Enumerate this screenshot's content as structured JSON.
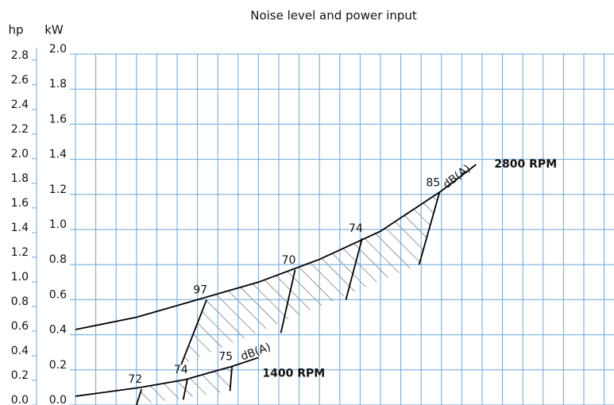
{
  "chart_data": {
    "type": "line",
    "title": "Noise level and power input",
    "y_label": "kW",
    "y2_label": "hp",
    "xlim": [
      0,
      26.5
    ],
    "xticks": [
      0,
      1,
      2,
      3,
      4,
      5,
      6,
      7,
      8,
      9,
      10,
      11,
      12,
      13,
      14,
      15,
      16,
      17,
      18,
      19,
      20,
      21,
      22,
      23,
      24,
      25,
      26
    ],
    "ylim": [
      0,
      2.0
    ],
    "yticks": [
      {
        "value": 0,
        "label": "0.0"
      },
      0.2,
      0.4,
      0.6,
      0.8,
      {
        "value": 1,
        "label": "1.0"
      },
      1.2,
      1.4,
      1.6,
      1.8,
      {
        "value": 2,
        "label": "2.0"
      }
    ],
    "y2lim": [
      0,
      2.85
    ],
    "y2ticks": [
      {
        "value": 0,
        "label": "0.0"
      },
      0.2,
      0.4,
      0.6,
      0.8,
      {
        "value": 1,
        "label": "1.0"
      },
      1.2,
      1.4,
      1.6,
      1.8,
      {
        "value": 2,
        "label": "2.0"
      },
      2.2,
      2.4,
      2.6,
      2.8
    ],
    "grid": true,
    "grid_color": "#6aa6da",
    "series": [
      {
        "name": "2800 RPM",
        "color": "#000000",
        "x": [
          0,
          3,
          6,
          9,
          12,
          15,
          18,
          19.7
        ],
        "values": [
          0.43,
          0.5,
          0.6,
          0.7,
          0.83,
          0.99,
          1.22,
          1.37
        ]
      },
      {
        "name": "1400 RPM",
        "color": "#000000",
        "x": [
          0,
          3.2,
          5.4,
          7.7,
          9.0
        ],
        "values": [
          0.05,
          0.1,
          0.145,
          0.22,
          0.27
        ]
      }
    ],
    "noise_lines": [
      {
        "label": "97",
        "x": [
          6.45,
          5.2
        ],
        "values": [
          0.6,
          0.23
        ]
      },
      {
        "label": "70",
        "x": [
          10.8,
          10.1
        ],
        "values": [
          0.77,
          0.41
        ]
      },
      {
        "label": "74",
        "x": [
          14.1,
          13.3
        ],
        "values": [
          0.95,
          0.6
        ]
      },
      {
        "label": "85",
        "x": [
          17.9,
          16.9
        ],
        "values": [
          1.21,
          0.8
        ]
      },
      {
        "label": "72",
        "x": [
          3.25,
          3.0
        ],
        "values": [
          0.09,
          0
        ]
      },
      {
        "label": "74",
        "x": [
          5.5,
          5.3
        ],
        "values": [
          0.145,
          0.03
        ]
      },
      {
        "label": "75",
        "x": [
          7.7,
          7.6
        ],
        "values": [
          0.22,
          0.08
        ]
      }
    ],
    "unit_labels": [
      "dB(A)",
      "dB(A)"
    ]
  }
}
